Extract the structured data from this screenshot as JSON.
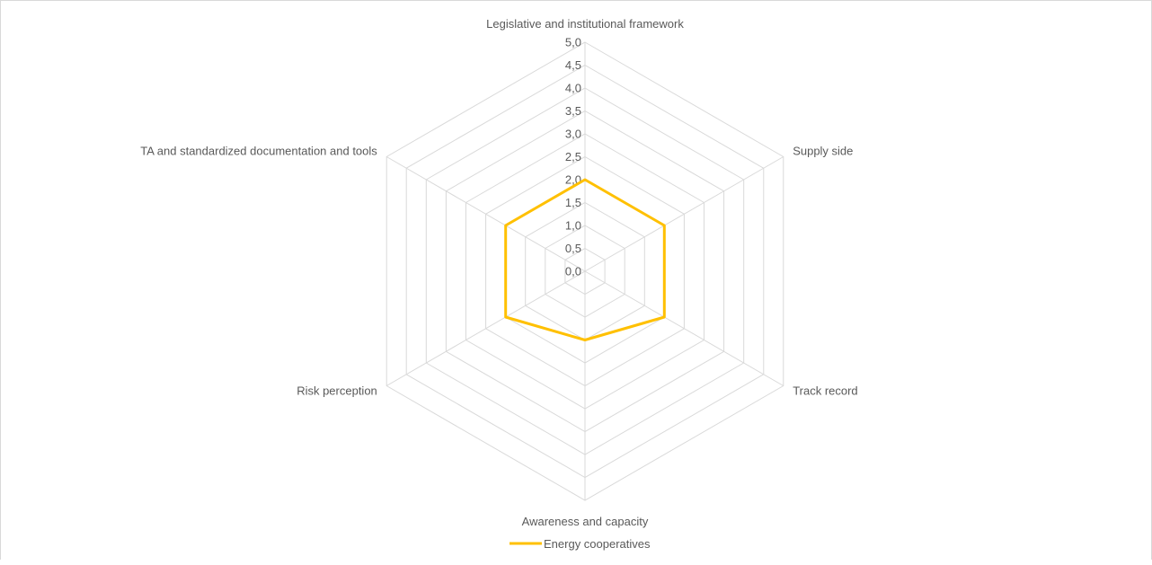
{
  "chart_data": {
    "type": "radar",
    "title": "",
    "categories": [
      "Legislative and institutional framework",
      "Supply side",
      "Track record",
      "Awareness and capacity",
      "Risk perception",
      "TA and standardized documentation and tools"
    ],
    "series": [
      {
        "name": "Energy cooperatives",
        "values": [
          2.0,
          2.0,
          2.0,
          1.5,
          2.0,
          2.0
        ],
        "color": "#FFC000"
      }
    ],
    "rlim": [
      0,
      5
    ],
    "ticks": [
      "0,0",
      "0,5",
      "1,0",
      "1,5",
      "2,0",
      "2,5",
      "3,0",
      "3,5",
      "4,0",
      "4,5",
      "5,0"
    ],
    "grid": true,
    "grid_color": "#d9d9d9",
    "legend_position": "bottom"
  }
}
